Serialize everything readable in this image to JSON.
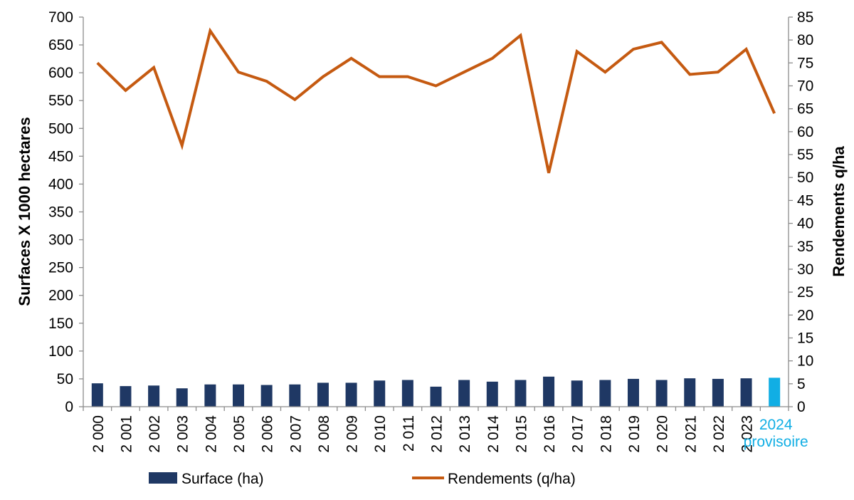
{
  "colors": {
    "surface_bar": "#1f3864",
    "highlight_bar": "#11aee4",
    "rendement_line": "#c55a11",
    "axis": "#8c8c8c",
    "highlight_label": "#11aee4"
  },
  "legend": {
    "surface_label": "Surface (ha)",
    "rendement_label": "Rendements (q/ha)"
  },
  "chart_data": {
    "type": "bar",
    "categories": [
      "2 000",
      "2 001",
      "2 002",
      "2 003",
      "2 004",
      "2 005",
      "2 006",
      "2 007",
      "2 008",
      "2 009",
      "2 010",
      "2 011",
      "2 012",
      "2 013",
      "2 014",
      "2 015",
      "2 016",
      "2 017",
      "2 018",
      "2 019",
      "2 020",
      "2 021",
      "2 022",
      "2 023",
      "2024 provisoire"
    ],
    "highlight_category": "2024 provisoire",
    "series": [
      {
        "name": "Surface (ha)",
        "type": "bar",
        "axis": "left",
        "values": [
          42,
          37,
          38,
          33,
          40,
          40,
          39,
          40,
          43,
          43,
          47,
          48,
          36,
          48,
          45,
          48,
          54,
          47,
          48,
          50,
          48,
          51,
          50,
          51,
          52
        ]
      },
      {
        "name": "Rendements (q/ha)",
        "type": "line",
        "axis": "right",
        "values": [
          75,
          69,
          74,
          57,
          82,
          73,
          71,
          67,
          72,
          76,
          72,
          72,
          70,
          73,
          76,
          81,
          51,
          77.5,
          73,
          78,
          79.5,
          72.5,
          73,
          78,
          64
        ]
      }
    ],
    "ylabel": "Surfaces X 1000 hectares",
    "y2label": "Rendements q/ha",
    "ylim": [
      0,
      700
    ],
    "y2lim": [
      0,
      85
    ],
    "yticks": [
      "0",
      "50",
      "100",
      "150",
      "200",
      "250",
      "300",
      "350",
      "400",
      "450",
      "500",
      "550",
      "600",
      "650",
      "700"
    ],
    "y2ticks": [
      "0",
      "5",
      "10",
      "15",
      "20",
      "25",
      "30",
      "35",
      "40",
      "45",
      "50",
      "55",
      "60",
      "65",
      "70",
      "75",
      "80",
      "85"
    ],
    "grid": false,
    "legend_position": "bottom"
  }
}
